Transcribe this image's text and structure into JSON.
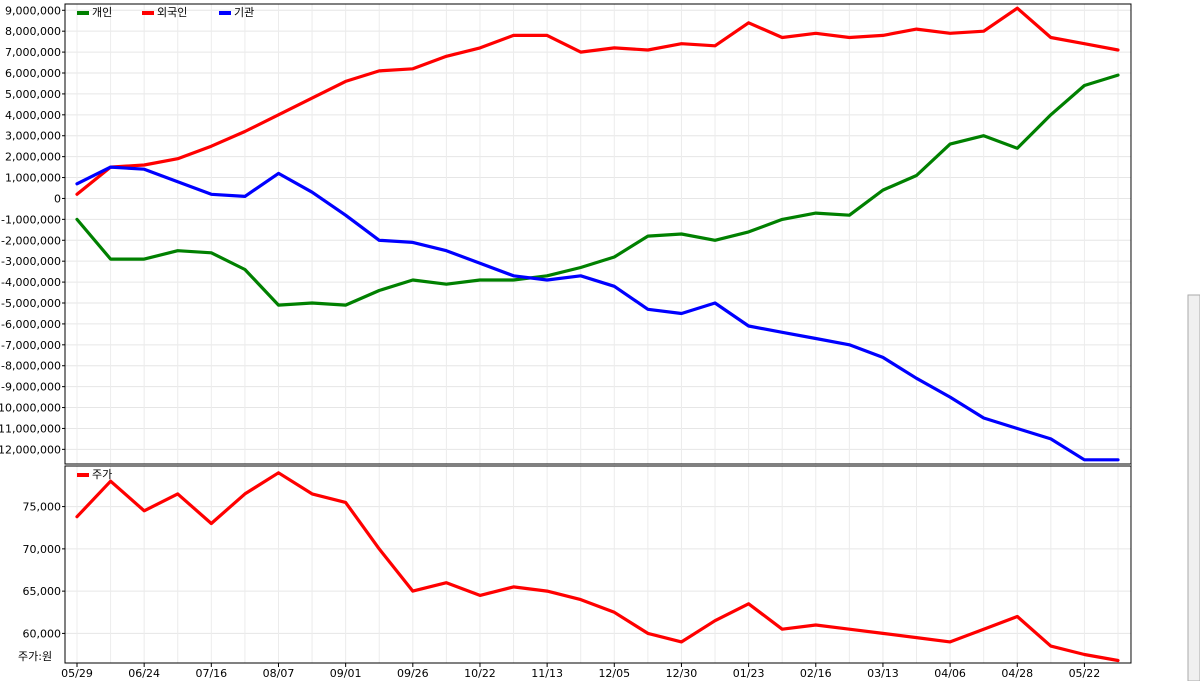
{
  "chart_data": [
    {
      "type": "line",
      "title": "",
      "legend_placement": "top-left",
      "grid": true,
      "ylim": [
        -12700000,
        9300000
      ],
      "yticks": [
        9000000,
        8000000,
        7000000,
        6000000,
        5000000,
        4000000,
        3000000,
        2000000,
        1000000,
        0,
        -1000000,
        -2000000,
        -3000000,
        -4000000,
        -5000000,
        -6000000,
        -7000000,
        -8000000,
        -9000000,
        -10000000,
        -11000000,
        -12000000
      ],
      "ytick_labels": [
        "9,000,000",
        "8,000,000",
        "7,000,000",
        "6,000,000",
        "5,000,000",
        "4,000,000",
        "3,000,000",
        "2,000,000",
        "1,000,000",
        "0",
        "-1,000,000",
        "-2,000,000",
        "-3,000,000",
        "-4,000,000",
        "-5,000,000",
        "-6,000,000",
        "-7,000,000",
        "-8,000,000",
        "-9,000,000",
        "-10,000,000",
        "-11,000,000",
        "-12,000,000"
      ],
      "x": [
        "05/29",
        "06/12",
        "06/24",
        "07/05",
        "07/16",
        "07/27",
        "08/07",
        "08/20",
        "09/01",
        "09/13",
        "09/26",
        "10/08",
        "10/22",
        "11/01",
        "11/13",
        "11/24",
        "12/05",
        "12/17",
        "12/30",
        "01/11",
        "01/23",
        "02/04",
        "02/16",
        "03/01",
        "03/13",
        "03/25",
        "04/06",
        "04/17",
        "04/28",
        "05/10",
        "05/22",
        "05/31"
      ],
      "series": [
        {
          "name": "개인",
          "color": "#008000",
          "values": [
            -1000000,
            -2900000,
            -2900000,
            -2500000,
            -2600000,
            -3400000,
            -5100000,
            -5000000,
            -5100000,
            -4400000,
            -3900000,
            -4100000,
            -3900000,
            -3900000,
            -3700000,
            -3300000,
            -2800000,
            -1800000,
            -1700000,
            -2000000,
            -1600000,
            -1000000,
            -700000,
            -800000,
            400000,
            1100000,
            2600000,
            3000000,
            2400000,
            4000000,
            5400000,
            5900000
          ]
        },
        {
          "name": "외국인",
          "color": "#ff0000",
          "values": [
            200000,
            1500000,
            1600000,
            1900000,
            2500000,
            3200000,
            4000000,
            4800000,
            5600000,
            6100000,
            6200000,
            6800000,
            7200000,
            7800000,
            7800000,
            7000000,
            7200000,
            7100000,
            7400000,
            7300000,
            8400000,
            7700000,
            7900000,
            7700000,
            7800000,
            8100000,
            7900000,
            8000000,
            9100000,
            7700000,
            7400000,
            7100000
          ]
        },
        {
          "name": "기관",
          "color": "#0000ff",
          "values": [
            700000,
            1500000,
            1400000,
            800000,
            200000,
            100000,
            1200000,
            300000,
            -800000,
            -2000000,
            -2100000,
            -2500000,
            -3100000,
            -3700000,
            -3900000,
            -3700000,
            -4200000,
            -5300000,
            -5500000,
            -5000000,
            -6100000,
            -6400000,
            -6700000,
            -7000000,
            -7600000,
            -8600000,
            -9500000,
            -10500000,
            -11000000,
            -11500000,
            -12500000,
            -12500000
          ]
        }
      ]
    },
    {
      "type": "line",
      "title": "",
      "ylabel": "주가:원",
      "legend_placement": "top-left",
      "grid": true,
      "ylim": [
        56500,
        79800
      ],
      "yticks": [
        75000,
        70000,
        65000,
        60000
      ],
      "ytick_labels": [
        "75,000",
        "70,000",
        "65,000",
        "60,000"
      ],
      "x": [
        "05/29",
        "06/12",
        "06/24",
        "07/05",
        "07/16",
        "07/27",
        "08/07",
        "08/20",
        "09/01",
        "09/13",
        "09/26",
        "10/08",
        "10/22",
        "11/01",
        "11/13",
        "11/24",
        "12/05",
        "12/17",
        "12/30",
        "01/11",
        "01/23",
        "02/04",
        "02/16",
        "03/01",
        "03/13",
        "03/25",
        "04/06",
        "04/17",
        "04/28",
        "05/10",
        "05/22",
        "05/31"
      ],
      "xtick_labels": [
        "05/29",
        "06/24",
        "07/16",
        "08/07",
        "09/01",
        "09/26",
        "10/22",
        "11/13",
        "12/05",
        "12/30",
        "01/23",
        "02/16",
        "03/13",
        "04/06",
        "04/28",
        "05/22"
      ],
      "series": [
        {
          "name": "주가",
          "color": "#ff0000",
          "values": [
            73800,
            78000,
            74500,
            76500,
            73000,
            76500,
            79000,
            76500,
            75500,
            70000,
            65000,
            66000,
            64500,
            65500,
            65000,
            64000,
            62500,
            60000,
            59000,
            61500,
            63500,
            60500,
            61000,
            60500,
            60000,
            59500,
            59000,
            60500,
            62000,
            58500,
            57500,
            56800
          ]
        }
      ]
    }
  ]
}
